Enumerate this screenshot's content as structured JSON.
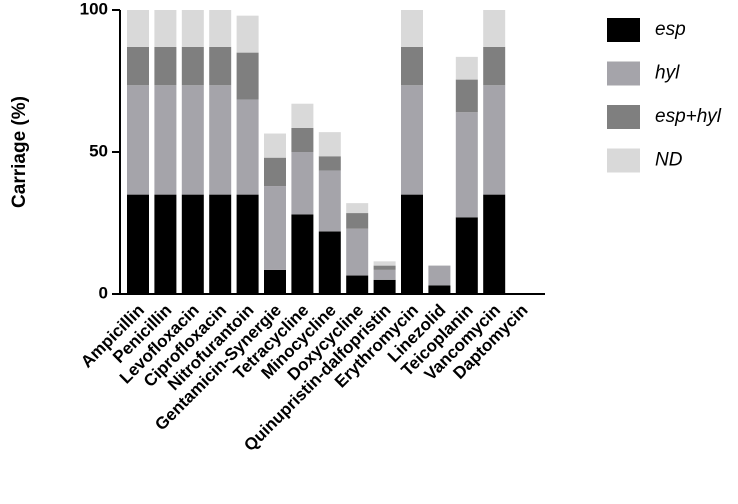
{
  "chart_data": {
    "type": "stacked-bar",
    "y_label": "Carriage (%)",
    "categories": [
      "Ampicillin",
      "Penicillin",
      "Levofloxacin",
      "Ciprofloxacin",
      "Nitrofurantoin",
      "Gentamicin-Synergie",
      "Tetracycline",
      "Minocycline",
      "Doxycycline",
      "Quinupristin-dalfopristin",
      "Erythromycin",
      "Linezolid",
      "Teicoplanin",
      "Vancomycin",
      "Daptomycin"
    ],
    "series": [
      {
        "name": "esp",
        "color": "#000000",
        "values": [
          35,
          35,
          35,
          35,
          35,
          8.5,
          28,
          22,
          6.5,
          5,
          35,
          3,
          27,
          35,
          0
        ]
      },
      {
        "name": "hyl",
        "color": "#a5a4aa",
        "values": [
          38.5,
          38.5,
          38.5,
          38.5,
          33.5,
          29.5,
          22,
          21.5,
          16.5,
          3.5,
          38.5,
          7,
          37,
          38.5,
          0
        ]
      },
      {
        "name": "esp+hyl",
        "color": "#7f7f7f",
        "values": [
          13.5,
          13.5,
          13.5,
          13.5,
          16.5,
          10,
          8.5,
          5,
          5.5,
          1.5,
          13.5,
          0,
          11.5,
          13.5,
          0
        ]
      },
      {
        "name": "ND",
        "color": "#d9d9d9",
        "values": [
          13,
          13,
          13,
          13,
          13,
          8.5,
          8.5,
          8.5,
          3.5,
          1.5,
          13,
          0,
          8,
          13,
          0
        ]
      }
    ],
    "ylim": [
      0,
      100
    ],
    "yticks": [
      0,
      50,
      100
    ]
  }
}
